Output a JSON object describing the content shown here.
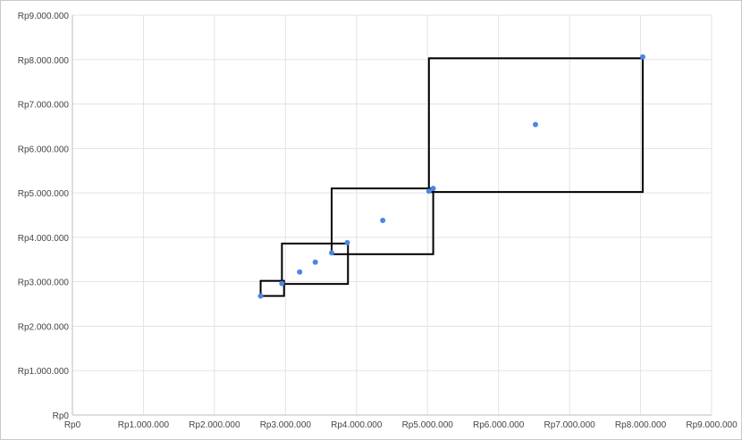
{
  "chart_data": {
    "type": "scatter",
    "title": "",
    "xlabel": "",
    "ylabel": "",
    "xlim": [
      0,
      9000000
    ],
    "ylim": [
      0,
      9000000
    ],
    "grid": true,
    "legend": "none",
    "colors": {
      "point": "#4a86e8",
      "box": "#000000",
      "grid": "#e3e3e3",
      "frame": "#c9c9c9"
    },
    "x_ticks": [
      {
        "value": 0,
        "label": "Rp0"
      },
      {
        "value": 1000000,
        "label": "Rp1.000.000"
      },
      {
        "value": 2000000,
        "label": "Rp2.000.000"
      },
      {
        "value": 3000000,
        "label": "Rp3.000.000"
      },
      {
        "value": 4000000,
        "label": "Rp4.000.000"
      },
      {
        "value": 5000000,
        "label": "Rp5.000.000"
      },
      {
        "value": 6000000,
        "label": "Rp6.000.000"
      },
      {
        "value": 7000000,
        "label": "Rp7.000.000"
      },
      {
        "value": 8000000,
        "label": "Rp8.000.000"
      },
      {
        "value": 9000000,
        "label": "Rp9.000.000"
      }
    ],
    "y_ticks": [
      {
        "value": 0,
        "label": "Rp0"
      },
      {
        "value": 1000000,
        "label": "Rp1.000.000"
      },
      {
        "value": 2000000,
        "label": "Rp2.000.000"
      },
      {
        "value": 3000000,
        "label": "Rp3.000.000"
      },
      {
        "value": 4000000,
        "label": "Rp4.000.000"
      },
      {
        "value": 5000000,
        "label": "Rp5.000.000"
      },
      {
        "value": 6000000,
        "label": "Rp6.000.000"
      },
      {
        "value": 7000000,
        "label": "Rp7.000.000"
      },
      {
        "value": 8000000,
        "label": "Rp8.000.000"
      },
      {
        "value": 9000000,
        "label": "Rp9.000.000"
      }
    ],
    "points": [
      {
        "x": 2650000,
        "y": 2680000
      },
      {
        "x": 2950000,
        "y": 2960000
      },
      {
        "x": 3200000,
        "y": 3220000
      },
      {
        "x": 3420000,
        "y": 3440000
      },
      {
        "x": 3650000,
        "y": 3650000
      },
      {
        "x": 3870000,
        "y": 3880000
      },
      {
        "x": 4370000,
        "y": 4380000
      },
      {
        "x": 5020000,
        "y": 5040000
      },
      {
        "x": 5080000,
        "y": 5100000
      },
      {
        "x": 6520000,
        "y": 6540000
      },
      {
        "x": 8030000,
        "y": 8060000
      }
    ],
    "boxes": [
      {
        "x0": 2650000,
        "x1": 2980000,
        "y0": 2680000,
        "y1": 3020000
      },
      {
        "x0": 2950000,
        "x1": 3880000,
        "y0": 2950000,
        "y1": 3860000
      },
      {
        "x0": 3650000,
        "x1": 5080000,
        "y0": 3620000,
        "y1": 5100000
      },
      {
        "x0": 5020000,
        "x1": 8030000,
        "y0": 5020000,
        "y1": 8030000
      }
    ]
  }
}
